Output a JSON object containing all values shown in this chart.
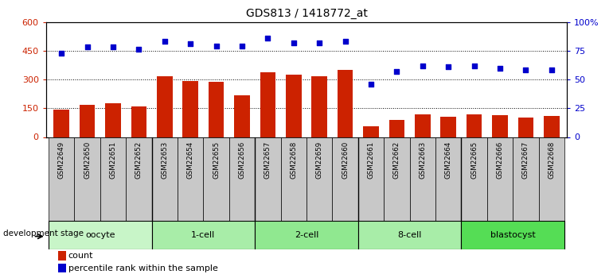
{
  "title": "GDS813 / 1418772_at",
  "samples": [
    "GSM22649",
    "GSM22650",
    "GSM22651",
    "GSM22652",
    "GSM22653",
    "GSM22654",
    "GSM22655",
    "GSM22656",
    "GSM22657",
    "GSM22658",
    "GSM22659",
    "GSM22660",
    "GSM22661",
    "GSM22662",
    "GSM22663",
    "GSM22664",
    "GSM22665",
    "GSM22666",
    "GSM22667",
    "GSM22668"
  ],
  "counts": [
    143,
    168,
    175,
    158,
    318,
    292,
    287,
    218,
    338,
    325,
    318,
    348,
    55,
    88,
    120,
    105,
    118,
    115,
    100,
    108
  ],
  "percentiles": [
    73,
    78,
    78,
    76,
    83,
    81,
    79,
    79,
    86,
    82,
    82,
    83,
    46,
    57,
    62,
    61,
    62,
    60,
    58,
    58
  ],
  "groups": [
    {
      "label": "oocyte",
      "start": 0,
      "end": 4,
      "color": "#c8f5c8"
    },
    {
      "label": "1-cell",
      "start": 4,
      "end": 8,
      "color": "#a8eda8"
    },
    {
      "label": "2-cell",
      "start": 8,
      "end": 12,
      "color": "#90e890"
    },
    {
      "label": "8-cell",
      "start": 12,
      "end": 16,
      "color": "#a8eda8"
    },
    {
      "label": "blastocyst",
      "start": 16,
      "end": 20,
      "color": "#55dd55"
    }
  ],
  "bar_color": "#cc2200",
  "dot_color": "#0000cc",
  "left_ylim": [
    0,
    600
  ],
  "left_yticks": [
    0,
    150,
    300,
    450,
    600
  ],
  "right_ylim": [
    0,
    100
  ],
  "right_yticks": [
    0,
    25,
    50,
    75,
    100
  ],
  "right_yticklabels": [
    "0",
    "25",
    "50",
    "75",
    "100%"
  ],
  "development_stage_label": "development stage"
}
